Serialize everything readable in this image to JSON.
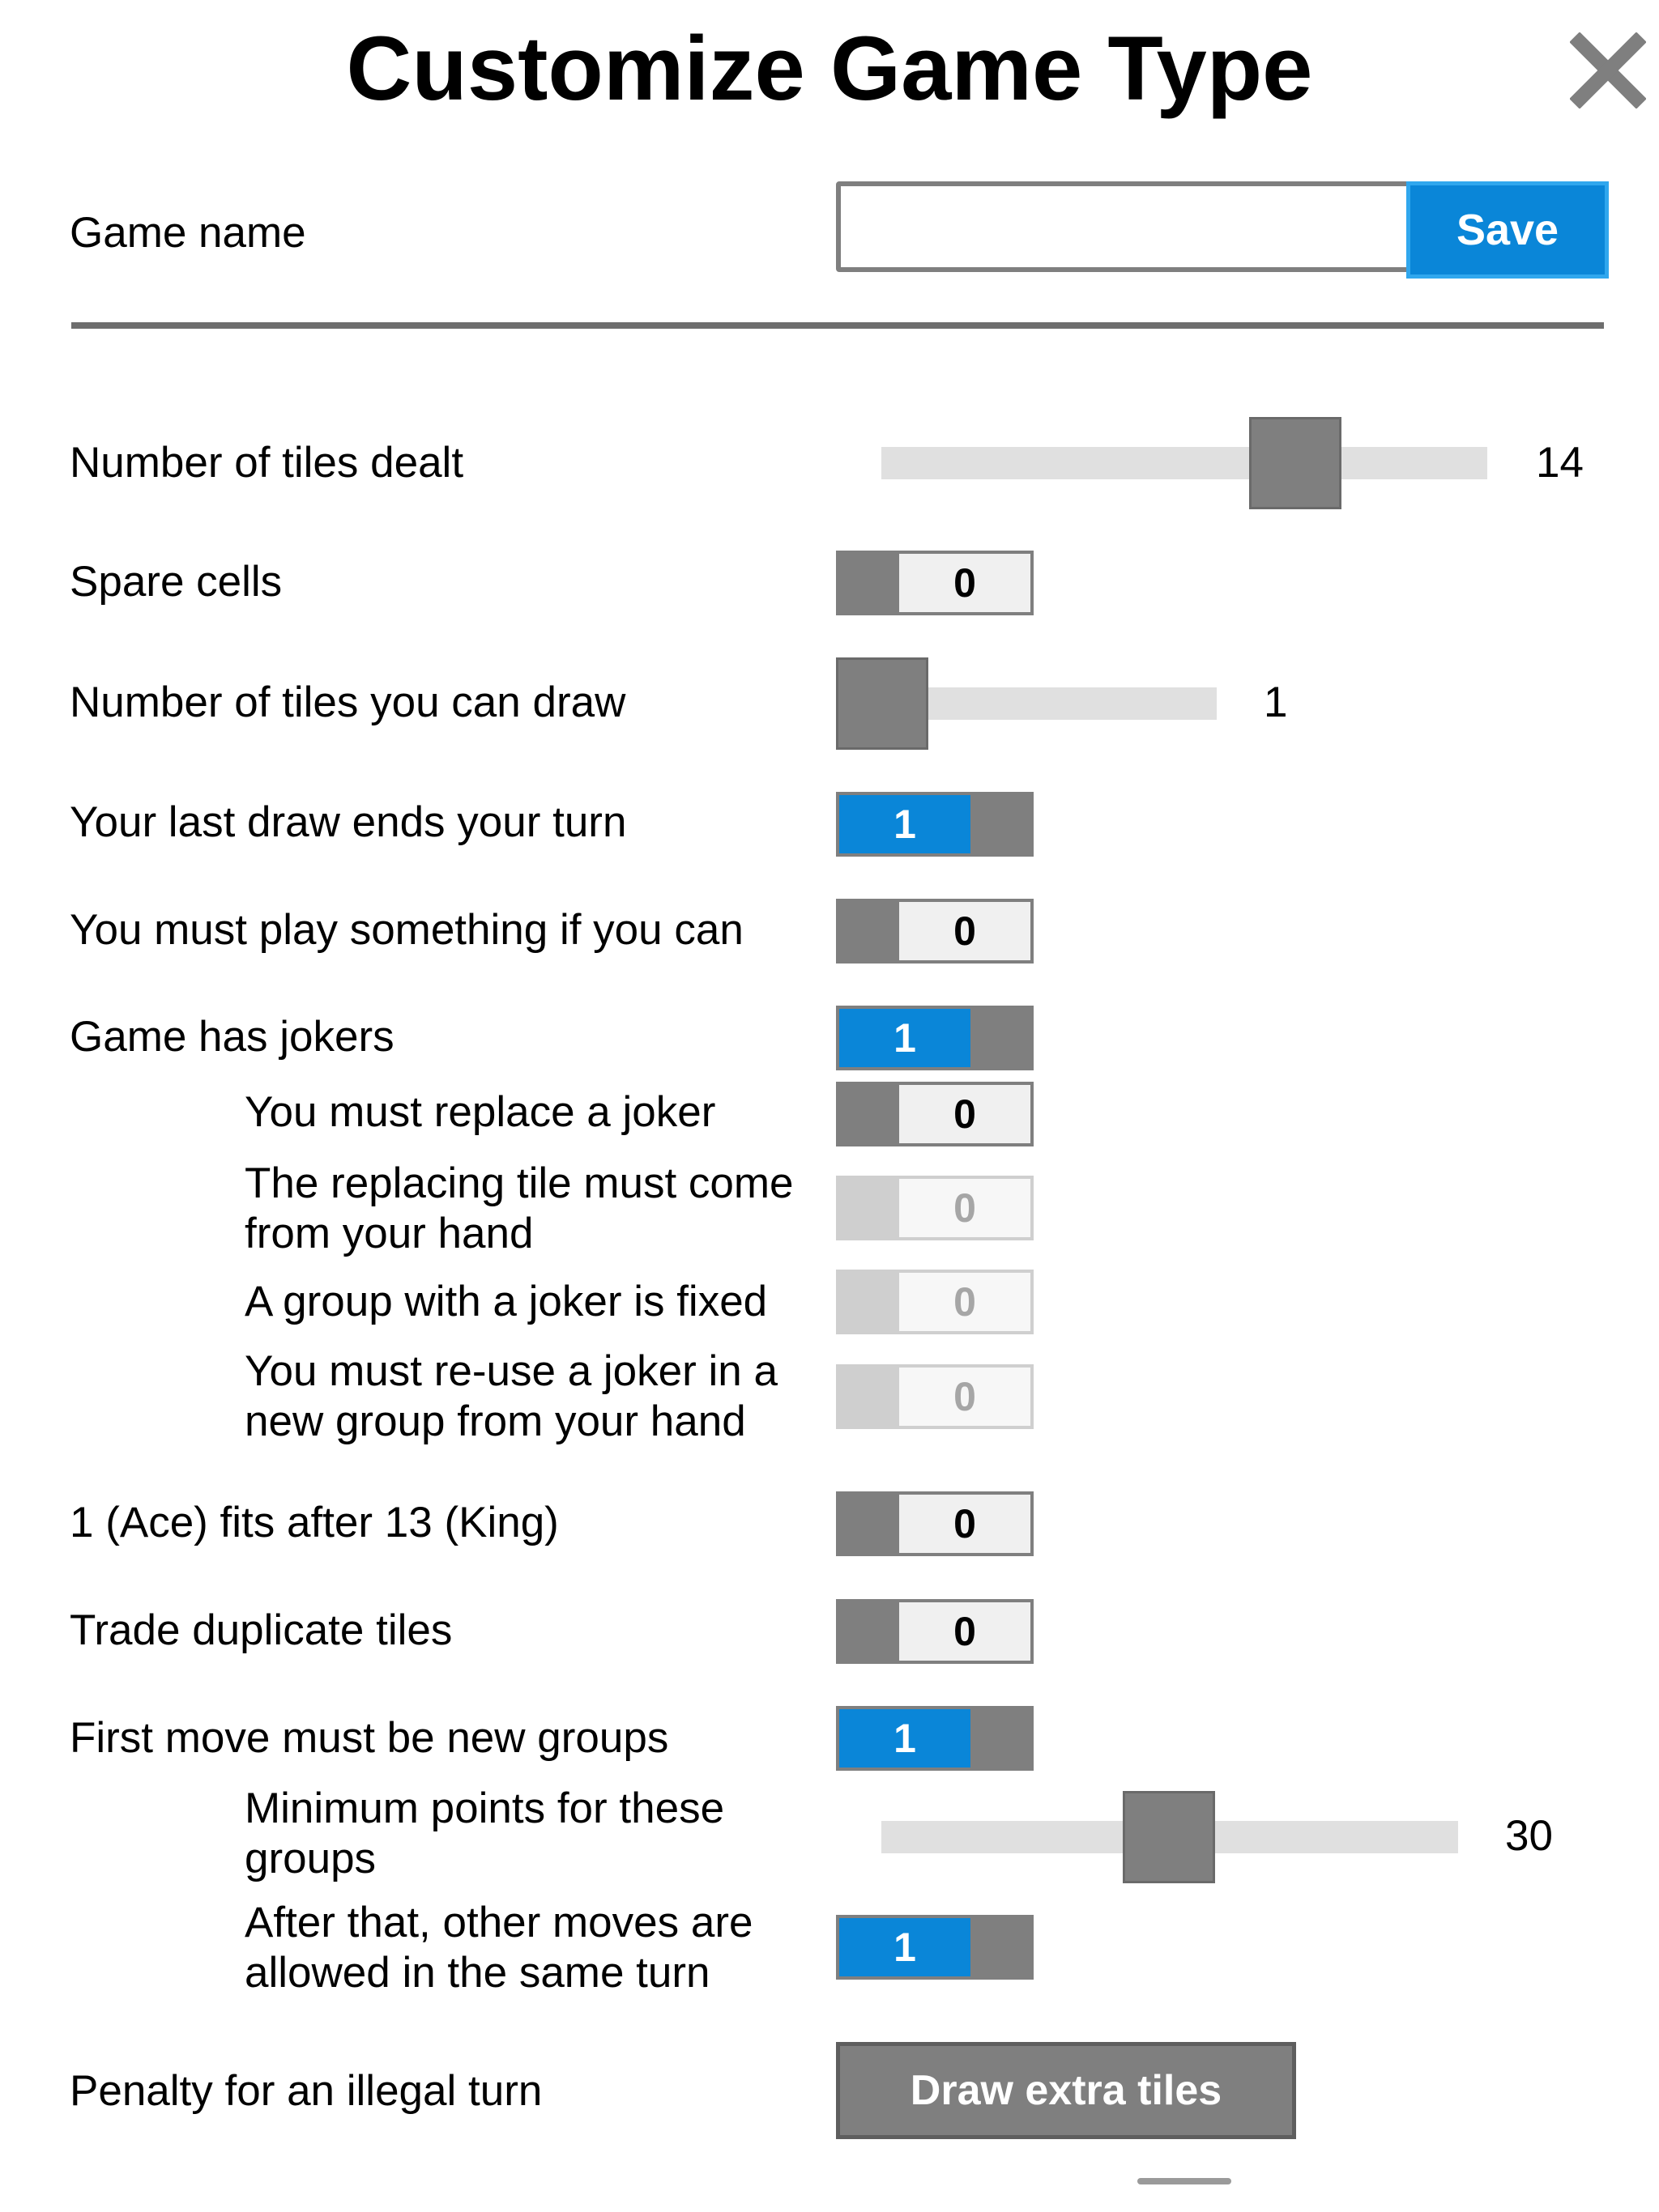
{
  "dialog": {
    "title": "Customize Game Type",
    "close_icon": "close-icon"
  },
  "game_name": {
    "label": "Game name",
    "value": "",
    "placeholder": "",
    "save_label": "Save"
  },
  "settings": {
    "tiles_dealt": {
      "label": "Number of tiles dealt",
      "value": "14",
      "min_fraction": 0.67
    },
    "spare_cells": {
      "label": "Spare cells",
      "value": "0",
      "on": false
    },
    "tiles_draw": {
      "label": "Number of tiles you can draw",
      "value": "1",
      "min_fraction": 0.0
    },
    "last_draw_ends": {
      "label": "Your last draw ends your turn",
      "value": "1",
      "on": true
    },
    "must_play": {
      "label": "You must play something if you can",
      "value": "0",
      "on": false
    },
    "has_jokers": {
      "label": "Game has jokers",
      "value": "1",
      "on": true
    },
    "replace_joker": {
      "label": "You must replace a joker",
      "value": "0",
      "on": false
    },
    "replacing_from_hand": {
      "label": "The replacing tile must come from your hand",
      "value": "0",
      "disabled": true
    },
    "joker_group_fixed": {
      "label": "A group with a joker is fixed",
      "value": "0",
      "disabled": true
    },
    "reuse_joker": {
      "label": "You must re-use a joker in a new group from your hand",
      "value": "0",
      "disabled": true
    },
    "ace_after_king": {
      "label": "1 (Ace) fits after 13 (King)",
      "value": "0",
      "on": false
    },
    "trade_duplicates": {
      "label": "Trade duplicate tiles",
      "value": "0",
      "on": false
    },
    "first_move_new_groups": {
      "label": "First move must be new groups",
      "value": "1",
      "on": true
    },
    "min_points": {
      "label": "Minimum points for these groups",
      "value": "30",
      "fraction": 0.5
    },
    "other_moves_same_turn": {
      "label": "After that, other moves are allowed in the same turn",
      "value": "1",
      "on": true
    },
    "penalty": {
      "label": "Penalty for an illegal turn",
      "button_label": "Draw extra tiles"
    }
  },
  "colors": {
    "accent": "#0a86d8",
    "toggle_off": "#7f7f7f",
    "disabled": "#cfcfcf"
  }
}
